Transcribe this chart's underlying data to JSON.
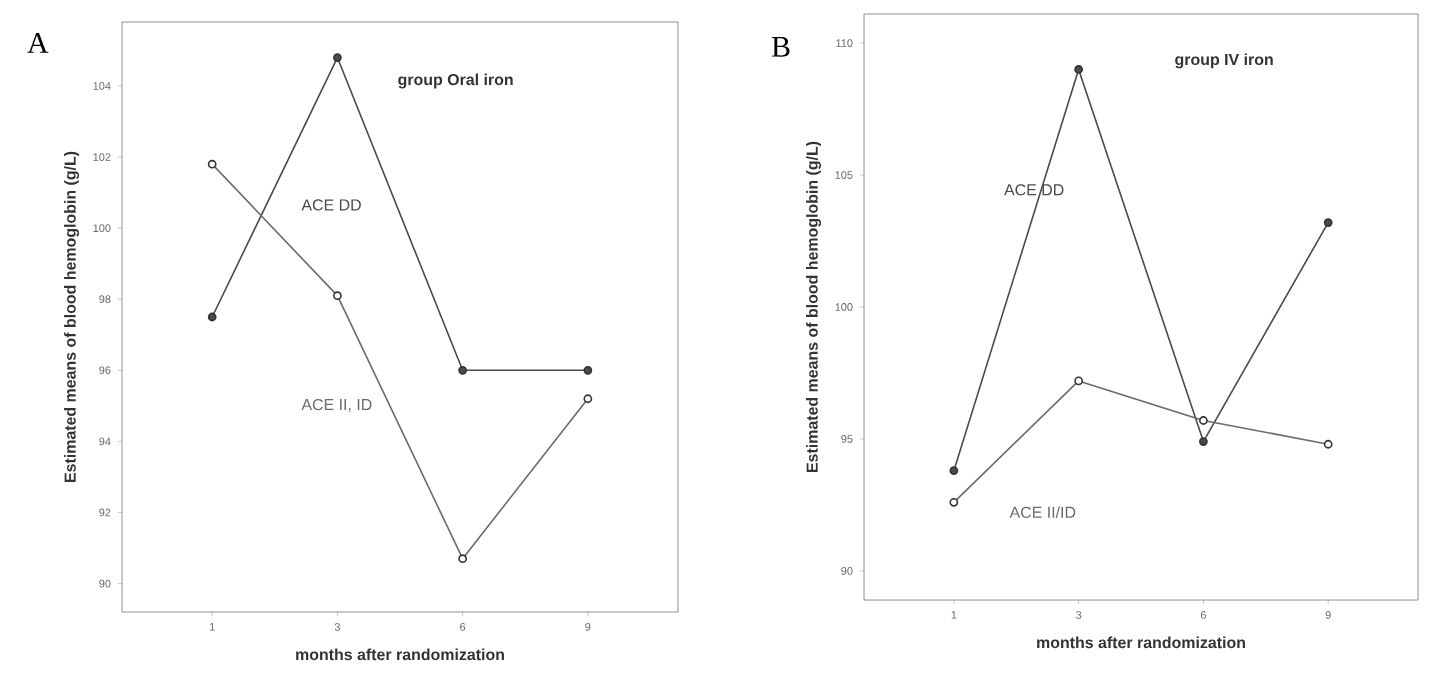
{
  "chart_data": [
    {
      "type": "line",
      "title": "A",
      "xlabel": "months after randomization",
      "ylabel": "Estimated means of blood hemoglobin (g/L)",
      "annotations": [
        "group Oral iron"
      ],
      "categories": [
        "1",
        "3",
        "6",
        "9"
      ],
      "marker": "circle",
      "grid": false,
      "ylim": [
        89.2,
        105.8
      ],
      "yticks": [
        90,
        92,
        94,
        96,
        98,
        100,
        102,
        104
      ],
      "series": [
        {
          "name": "ACE DD",
          "color": "#4a4a4a",
          "values": [
            97.5,
            104.8,
            96.0,
            96.0
          ]
        },
        {
          "name": "ACE II, ID",
          "color": "#6a6a6a",
          "values": [
            101.8,
            98.1,
            90.7,
            95.2
          ]
        }
      ]
    },
    {
      "type": "line",
      "title": "B",
      "xlabel": "months after randomization",
      "ylabel": "Estimated means of blood hemoglobin (g/L)",
      "annotations": [
        "group IV iron"
      ],
      "categories": [
        "1",
        "3",
        "6",
        "9"
      ],
      "marker": "circle",
      "grid": false,
      "ylim": [
        88.9,
        111.1
      ],
      "yticks": [
        90,
        95,
        100,
        105,
        110
      ],
      "series": [
        {
          "name": "ACE DD",
          "color": "#4a4a4a",
          "values": [
            93.8,
            109.0,
            94.9,
            103.2
          ]
        },
        {
          "name": "ACE II/ID",
          "color": "#6a6a6a",
          "values": [
            92.6,
            97.2,
            95.7,
            94.8
          ]
        }
      ]
    }
  ]
}
